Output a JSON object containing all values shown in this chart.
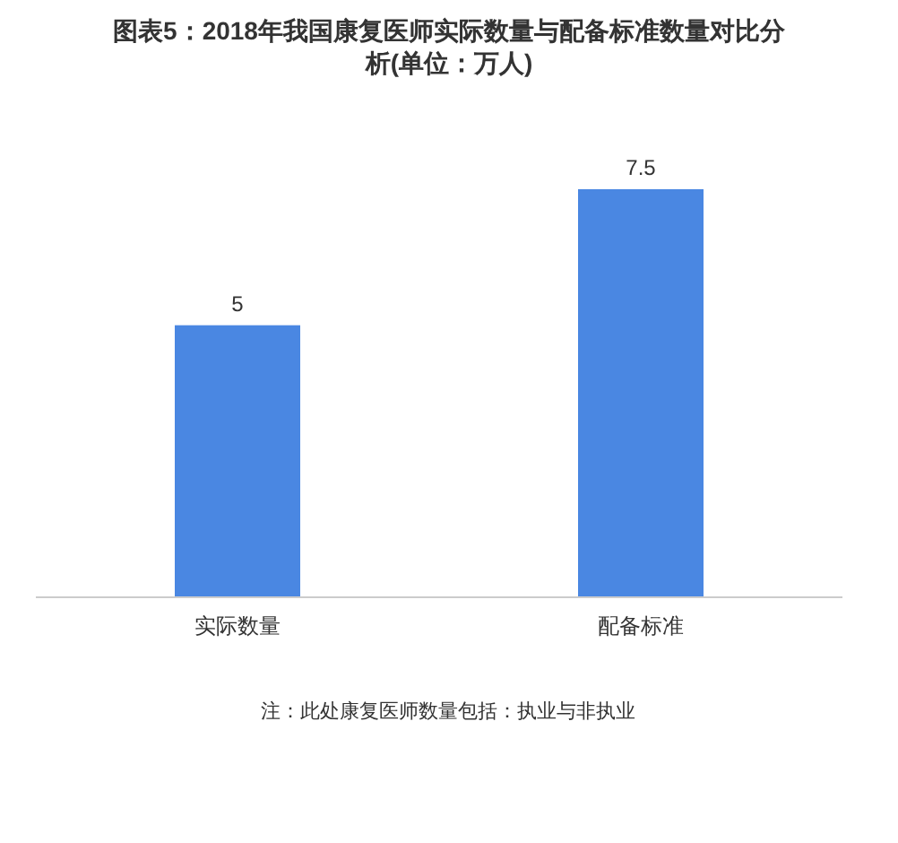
{
  "chart_data": {
    "type": "bar",
    "title": "图表5：2018年我国康复医师实际数量与配备标准数量对比分析(单位：万人)",
    "categories": [
      "实际数量",
      "配备标准"
    ],
    "values": [
      5,
      7.5
    ],
    "color": "#4a87e2",
    "data_labels": true,
    "annotations": [
      "注：此处康复医师数量包括：执业与非执业"
    ]
  }
}
